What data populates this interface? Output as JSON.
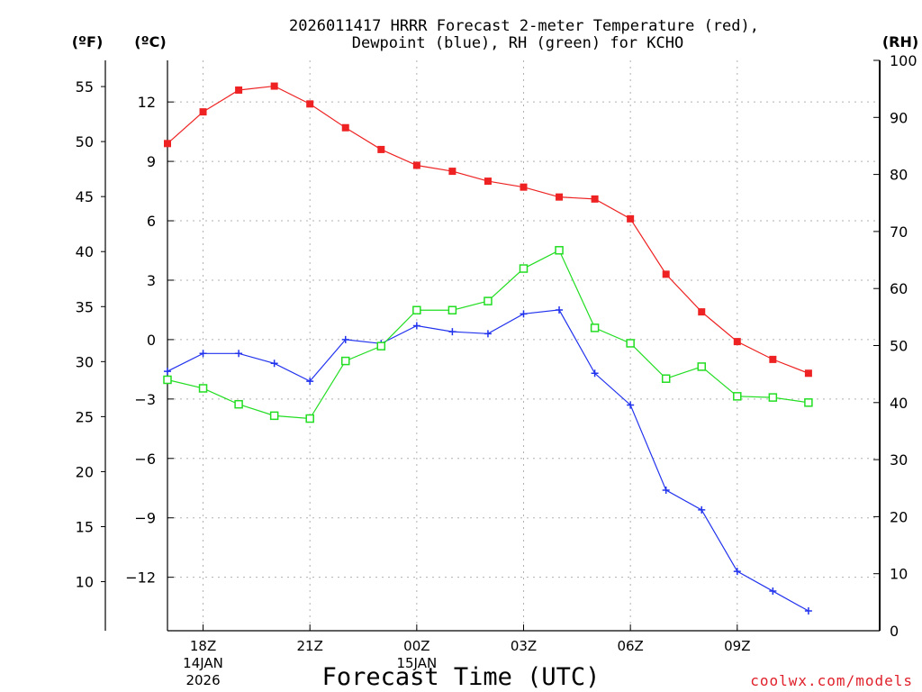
{
  "chart_data": {
    "type": "line",
    "title_line1": "2026011417 HRRR Forecast 2-meter Temperature (red),",
    "title_line2": "Dewpoint (blue), RH (green) for KCHO",
    "xlabel": "Forecast Time (UTC)",
    "credit": "coolwx.com/models",
    "units": {
      "f": "(ºF)",
      "c": "(ºC)",
      "rh": "(RH)"
    },
    "x_hours": [
      -1,
      0,
      1,
      2,
      3,
      4,
      5,
      6,
      7,
      8,
      9,
      10,
      11,
      12,
      13,
      14,
      15,
      16,
      17,
      18,
      19
    ],
    "xlim": [
      -1,
      19
    ],
    "x_ticks": [
      {
        "hour": 0,
        "label": "18Z",
        "sub1": "14JAN",
        "sub2": "2026"
      },
      {
        "hour": 3,
        "label": "21Z",
        "sub1": "",
        "sub2": ""
      },
      {
        "hour": 6,
        "label": "00Z",
        "sub1": "15JAN",
        "sub2": ""
      },
      {
        "hour": 9,
        "label": "03Z",
        "sub1": "",
        "sub2": ""
      },
      {
        "hour": 12,
        "label": "06Z",
        "sub1": "",
        "sub2": ""
      },
      {
        "hour": 15,
        "label": "09Z",
        "sub1": "",
        "sub2": ""
      }
    ],
    "celsius_axis": {
      "ylim": [
        -14.7,
        14.1
      ],
      "ticks": [
        12,
        9,
        6,
        3,
        0,
        -3,
        -6,
        -9,
        -12
      ],
      "labels": [
        "12",
        "9",
        "6",
        "3",
        "0",
        "−3",
        "−6",
        "−9",
        "−12"
      ]
    },
    "fahrenheit_axis": {
      "ticks": [
        55,
        50,
        45,
        40,
        35,
        30,
        25,
        20,
        15,
        10
      ],
      "labels": [
        "55",
        "50",
        "45",
        "40",
        "35",
        "30",
        "25",
        "20",
        "15",
        "10"
      ]
    },
    "rh_axis": {
      "ylim": [
        0,
        100
      ],
      "ticks": [
        100,
        90,
        80,
        70,
        60,
        50,
        40,
        30,
        20,
        10,
        0
      ],
      "labels": [
        "100",
        "90",
        "80",
        "70",
        "60",
        "50",
        "40",
        "30",
        "20",
        "10",
        "0"
      ]
    },
    "series": [
      {
        "name": "Temperature",
        "axis": "celsius",
        "color": "#ee2222",
        "marker": "filled-square",
        "values": [
          9.9,
          11.5,
          12.6,
          12.8,
          11.9,
          10.7,
          9.6,
          8.8,
          8.5,
          8.0,
          7.7,
          7.2,
          7.1,
          6.1,
          3.3,
          1.4,
          -0.1,
          -1.0,
          -1.7
        ]
      },
      {
        "name": "Dewpoint",
        "axis": "celsius",
        "color": "#2233ee",
        "marker": "plus",
        "values": [
          -1.6,
          -0.7,
          -0.7,
          -1.2,
          -2.1,
          0.0,
          -0.2,
          0.7,
          0.4,
          0.3,
          1.3,
          1.5,
          -1.7,
          -3.3,
          -7.6,
          -8.6,
          -11.7,
          -12.7,
          -13.7
        ]
      },
      {
        "name": "RH",
        "axis": "rh",
        "color": "#22dd22",
        "marker": "open-square",
        "values": [
          44,
          42.5,
          39.7,
          37.7,
          37.2,
          47.3,
          49.9,
          56.2,
          56.2,
          57.8,
          63.5,
          66.7,
          53.1,
          50.4,
          44.2,
          46.3,
          41.1,
          40.9,
          40.0
        ]
      }
    ]
  }
}
